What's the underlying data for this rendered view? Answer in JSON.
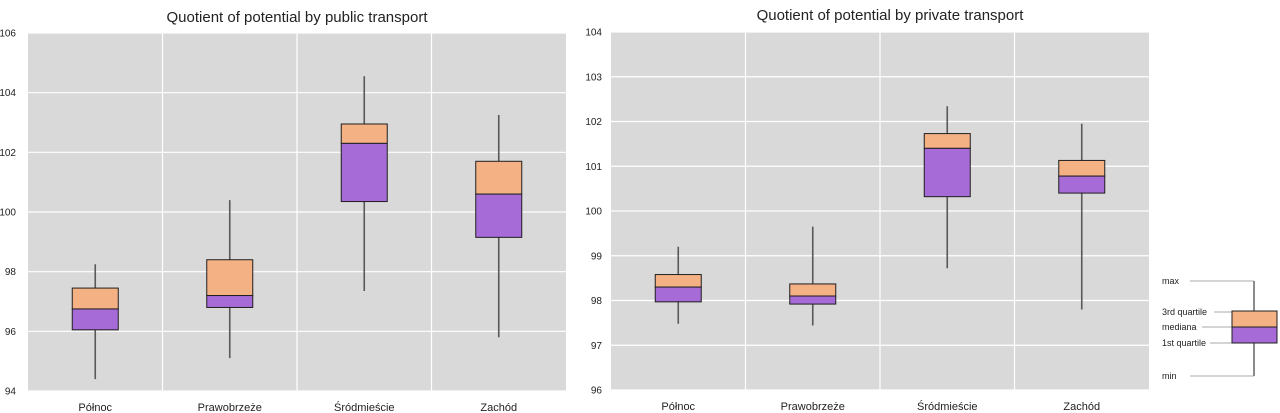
{
  "chart_data": [
    {
      "type": "box",
      "title": "Quotient of potential by public transport",
      "xlabel": "",
      "ylabel": "",
      "categories": [
        "Północ",
        "Prawobrzeże",
        "Śródmieście",
        "Zachód"
      ],
      "ylim": [
        94,
        106
      ],
      "yticks": [
        "94",
        "96",
        "98",
        "100",
        "102",
        "104",
        "106"
      ],
      "grid": true,
      "boxes": [
        {
          "min": 94.4,
          "q1": 96.05,
          "median": 96.75,
          "q3": 97.45,
          "max": 98.25
        },
        {
          "min": 95.1,
          "q1": 96.8,
          "median": 97.2,
          "q3": 98.4,
          "max": 100.4
        },
        {
          "min": 97.35,
          "q1": 100.35,
          "median": 102.3,
          "q3": 102.95,
          "max": 104.55
        },
        {
          "min": 95.8,
          "q1": 99.15,
          "median": 100.6,
          "q3": 101.7,
          "max": 103.25
        }
      ]
    },
    {
      "type": "box",
      "title": "Quotient of potential by private transport",
      "xlabel": "",
      "ylabel": "",
      "categories": [
        "Północ",
        "Prawobrzeże",
        "Śródmieście",
        "Zachód"
      ],
      "ylim": [
        96,
        104
      ],
      "yticks": [
        "96",
        "97",
        "98",
        "99",
        "100",
        "101",
        "102",
        "103",
        "104"
      ],
      "grid": true,
      "boxes": [
        {
          "min": 97.48,
          "q1": 97.97,
          "median": 98.3,
          "q3": 98.58,
          "max": 99.2
        },
        {
          "min": 97.44,
          "q1": 97.92,
          "median": 98.1,
          "q3": 98.37,
          "max": 99.65
        },
        {
          "min": 98.72,
          "q1": 100.32,
          "median": 101.4,
          "q3": 101.73,
          "max": 102.34
        },
        {
          "min": 97.8,
          "q1": 100.4,
          "median": 100.78,
          "q3": 101.13,
          "max": 101.95
        }
      ]
    }
  ],
  "legend": {
    "max": "max",
    "q3": "3rd quartile",
    "median": "mediana",
    "q1": "1st quartile",
    "min": "min"
  },
  "colors": {
    "upper_box": "#f4b183",
    "lower_box": "#a66bd6",
    "plot_bg": "#d9d9d9",
    "grid": "#ffffff",
    "whisker": "#595959",
    "box_edge": "#1f1f1f"
  }
}
